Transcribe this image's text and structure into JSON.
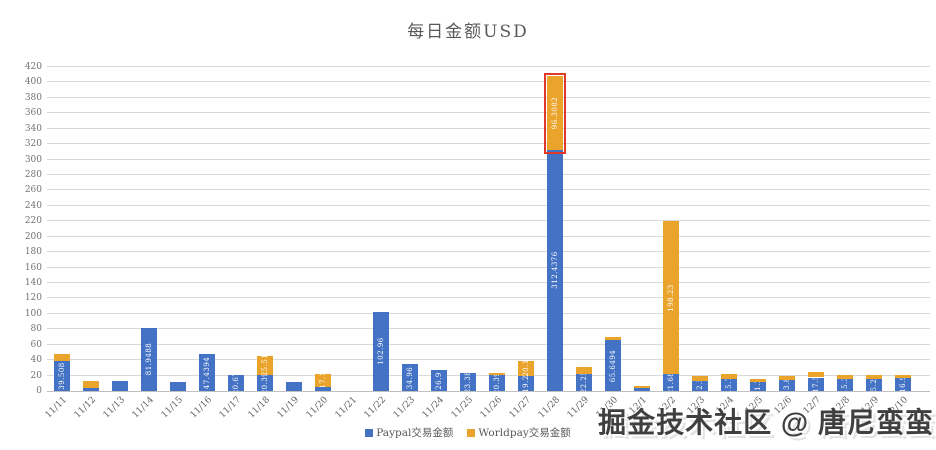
{
  "title": "每日金额USD",
  "watermark": "掘金技术社区 @ 唐尼蛮蛮",
  "colors": {
    "paypal_blue": "#4472C4",
    "worldpay_orange": "#EBA42B",
    "annotation_red": "#E0392B",
    "gridline": "#D9D9D9",
    "axis_text": "#737373",
    "title_text": "#595959"
  },
  "legend": {
    "position": "bottom",
    "items": [
      {
        "label": "Paypal交易金额",
        "color": "#4472C4"
      },
      {
        "label": "Worldpay交易金额",
        "color": "#EBA42B"
      }
    ]
  },
  "chart_data": {
    "type": "bar",
    "stacked": true,
    "title": "每日金额USD",
    "xlabel": "",
    "ylabel": "",
    "ylim": [
      0,
      420
    ],
    "ytick_step": 20,
    "grid": true,
    "legend_position": "bottom",
    "categories": [
      "11/11",
      "11/12",
      "11/13",
      "11/14",
      "11/15",
      "11/16",
      "11/17",
      "11/18",
      "11/19",
      "11/20",
      "11/21",
      "11/22",
      "11/23",
      "11/24",
      "11/25",
      "11/26",
      "11/27",
      "11/28",
      "11/29",
      "11/30",
      "12/1",
      "12/2",
      "12/3",
      "12/4",
      "12/5",
      "12/6",
      "12/7",
      "12/8",
      "12/9",
      "12/10"
    ],
    "series": [
      {
        "name": "Paypal交易金额",
        "color": "#4472C4",
        "values": [
          39.508,
          4.3,
          13.3,
          81.9488,
          11.5,
          47.4394,
          20.67,
          20.39,
          11.8,
          5.5,
          0,
          102.96,
          34.96,
          26.9,
          23.38,
          20.39,
          19.2,
          312.4376,
          22.25,
          65.6494,
          4.5,
          21.68,
          12.5,
          15.7,
          11.2,
          13.8,
          17.5,
          15.3,
          15.27,
          16.9
        ],
        "labels": [
          "39.508",
          "",
          "",
          "81.9488",
          "",
          "47.4394",
          "20.67",
          "20.39",
          "",
          "",
          "",
          "102.96",
          "34.96",
          "26.9",
          "23.38",
          "20.39",
          "19.2",
          "312.4376",
          "22.25",
          "65.6494",
          "",
          "21.68",
          "12.5",
          "15.7",
          "11.2",
          "13.8",
          "17.5",
          "15.3",
          "15.27",
          "16.9"
        ]
      },
      {
        "name": "Worldpay交易金额",
        "color": "#EBA42B",
        "values": [
          8.99,
          8.6,
          0,
          0,
          0,
          0,
          0,
          25.51,
          0,
          17.1,
          0,
          0,
          0,
          0,
          0,
          3.2,
          20.1,
          96.3082,
          8.9,
          4.3,
          2.2,
          198.23,
          7.5,
          6,
          4.8,
          5.2,
          7,
          5.8,
          5.5,
          4.2
        ],
        "labels": [
          "",
          "",
          "",
          "",
          "",
          "",
          "",
          "25.51",
          "",
          "17.1",
          "",
          "",
          "",
          "",
          "",
          "",
          "20.1",
          "96.3082",
          "",
          "",
          "",
          "198.23",
          "",
          "",
          "",
          "",
          "",
          "",
          "",
          ""
        ]
      }
    ],
    "annotation": {
      "type": "red-highlight-box",
      "target_category": "11/28",
      "target_series": "Worldpay交易金额",
      "color": "#E0392B"
    }
  }
}
